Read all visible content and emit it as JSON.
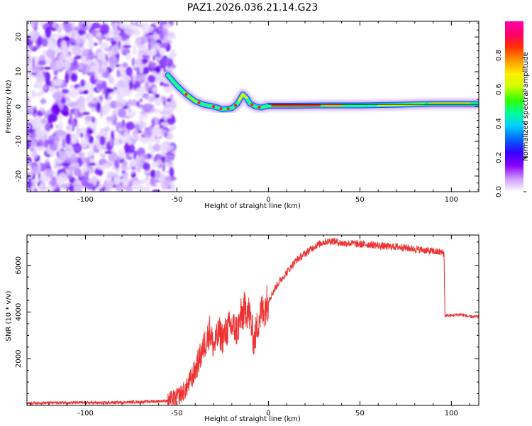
{
  "figure_title": "PAZ1.2026.036.21.14.G23",
  "chart_data": [
    {
      "type": "heatmap",
      "panel": "top",
      "title": "PAZ1.2026.036.21.14.G23",
      "xlabel": "Height of straight line (km)",
      "ylabel": "Frequency (Hz)",
      "xlim": [
        -132,
        115
      ],
      "ylim": [
        -24.5,
        24.5
      ],
      "xticks": [
        -100,
        -50,
        0,
        50,
        100
      ],
      "yticks": [
        -20,
        -10,
        0,
        10,
        20
      ],
      "colorbar": {
        "label": "Normalized spectral amplitude",
        "range": [
          0,
          1
        ],
        "ticks": [
          "0.0",
          "0.2",
          "0.4",
          "0.6",
          "0.8"
        ],
        "colors": [
          "#ffffff",
          "#cc99ff",
          "#8800ff",
          "#3300ff",
          "#0066ff",
          "#00ccff",
          "#00ff99",
          "#33ff00",
          "#ccff00",
          "#ffee00",
          "#ff9900",
          "#ff3300",
          "#ff0066",
          "#ff00aa"
        ]
      },
      "noise_region_x": [
        -132,
        -52
      ],
      "signal_track": {
        "x": [
          -55,
          -50,
          -45,
          -40,
          -35,
          -30,
          -25,
          -20,
          -17,
          -14,
          -12,
          -10,
          -7,
          -4,
          0,
          10,
          30,
          50,
          70,
          90,
          115
        ],
        "frequency": [
          9,
          6,
          3.5,
          1.5,
          0.5,
          0,
          -0.8,
          -0.5,
          0.8,
          3.5,
          2.5,
          0.8,
          0,
          -0.3,
          0.2,
          0.2,
          0.3,
          0.3,
          0.5,
          0.8,
          0.8
        ]
      }
    },
    {
      "type": "line",
      "panel": "bottom",
      "xlabel": "Height of straight line (km)",
      "ylabel": "SNR (10 * v/v)",
      "xlim": [
        -132,
        115
      ],
      "ylim": [
        0,
        7300
      ],
      "xticks": [
        -100,
        -50,
        0,
        50,
        100
      ],
      "yticks": [
        2000,
        4000,
        6000
      ],
      "series": [
        {
          "name": "SNR",
          "color": "#ee3333",
          "x": [
            -132,
            -110,
            -90,
            -70,
            -55,
            -50,
            -45,
            -40,
            -35,
            -32,
            -30,
            -27,
            -25,
            -22,
            -20,
            -17,
            -15,
            -12,
            -10,
            -8,
            -5,
            0,
            5,
            10,
            15,
            20,
            25,
            30,
            35,
            40,
            45,
            50,
            55,
            60,
            65,
            70,
            75,
            80,
            85,
            90,
            95,
            96,
            96.5,
            100,
            105,
            110,
            115
          ],
          "values": [
            100,
            120,
            110,
            150,
            200,
            350,
            700,
            1500,
            2600,
            3200,
            2500,
            3100,
            2900,
            3300,
            3400,
            3200,
            3800,
            4200,
            3800,
            2700,
            3800,
            4500,
            5200,
            5700,
            6200,
            6500,
            6800,
            7000,
            7050,
            6950,
            6950,
            6900,
            6900,
            6850,
            6800,
            6800,
            6750,
            6700,
            6650,
            6600,
            6550,
            6500,
            3850,
            3850,
            3900,
            3800,
            3800
          ]
        }
      ]
    }
  ]
}
